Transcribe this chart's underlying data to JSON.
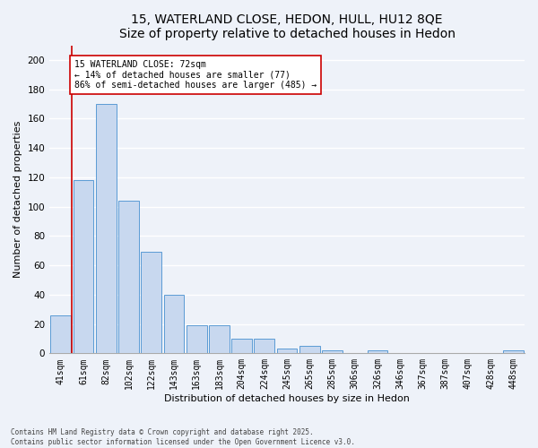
{
  "title1": "15, WATERLAND CLOSE, HEDON, HULL, HU12 8QE",
  "title2": "Size of property relative to detached houses in Hedon",
  "xlabel": "Distribution of detached houses by size in Hedon",
  "ylabel": "Number of detached properties",
  "bar_labels": [
    "41sqm",
    "61sqm",
    "82sqm",
    "102sqm",
    "122sqm",
    "143sqm",
    "163sqm",
    "183sqm",
    "204sqm",
    "224sqm",
    "245sqm",
    "265sqm",
    "285sqm",
    "306sqm",
    "326sqm",
    "346sqm",
    "367sqm",
    "387sqm",
    "407sqm",
    "428sqm",
    "448sqm"
  ],
  "bar_values": [
    26,
    118,
    170,
    104,
    69,
    40,
    19,
    19,
    10,
    10,
    3,
    5,
    2,
    0,
    2,
    0,
    0,
    0,
    0,
    0,
    2
  ],
  "bar_color": "#c8d8ef",
  "bar_edge_color": "#5b9bd5",
  "vline_color": "#cc0000",
  "vline_x_idx": 1,
  "annotation_text": "15 WATERLAND CLOSE: 72sqm\n← 14% of detached houses are smaller (77)\n86% of semi-detached houses are larger (485) →",
  "annotation_box_color": "#ffffff",
  "annotation_box_edge": "#cc0000",
  "ylim": [
    0,
    210
  ],
  "yticks": [
    0,
    20,
    40,
    60,
    80,
    100,
    120,
    140,
    160,
    180,
    200
  ],
  "footer1": "Contains HM Land Registry data © Crown copyright and database right 2025.",
  "footer2": "Contains public sector information licensed under the Open Government Licence v3.0.",
  "bg_color": "#eef2f9",
  "grid_color": "#ffffff",
  "title_fontsize": 10,
  "label_fontsize": 8,
  "tick_fontsize": 7,
  "annotation_fontsize": 7
}
